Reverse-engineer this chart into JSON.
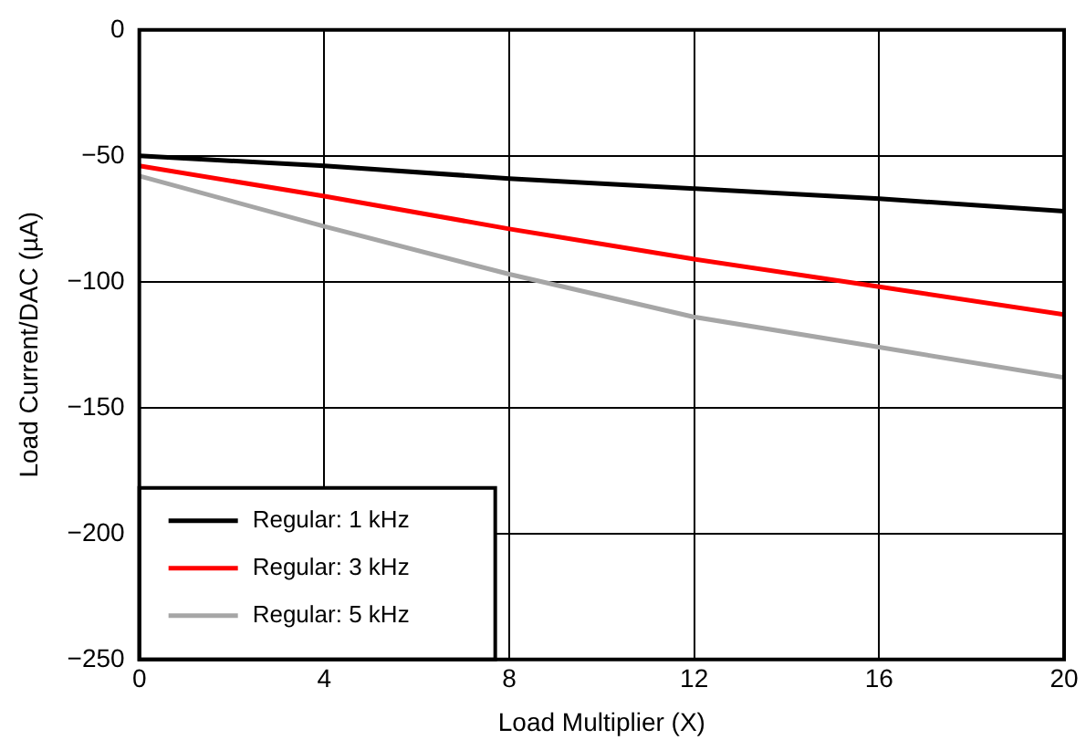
{
  "chart_data": {
    "type": "line",
    "xlabel": "Load Multiplier (X)",
    "ylabel": "Load Current/DAC (µA)",
    "x": [
      0,
      4,
      8,
      12,
      16,
      20
    ],
    "series": [
      {
        "name": "Regular: 1 kHz",
        "color": "#000000",
        "values": [
          -50,
          -54,
          -59,
          -63,
          -67,
          -72
        ]
      },
      {
        "name": "Regular: 3 kHz",
        "color": "#ff0000",
        "values": [
          -54,
          -66,
          -79,
          -91,
          -102,
          -113
        ]
      },
      {
        "name": "Regular: 5 kHz",
        "color": "#a6a6a6",
        "values": [
          -58,
          -78,
          -97,
          -114,
          -126,
          -138
        ]
      }
    ],
    "xlim": [
      0,
      20
    ],
    "xticks": [
      0,
      4,
      8,
      12,
      16,
      20
    ],
    "ylim": [
      -250,
      0
    ],
    "yticks": [
      {
        "value": -250,
        "label": "−250"
      },
      {
        "value": -200,
        "label": "−200"
      },
      {
        "value": -150,
        "label": "−150"
      },
      {
        "value": -100,
        "label": "−100"
      },
      {
        "value": -50,
        "label": "−50"
      },
      0
    ],
    "grid": true,
    "legend": "bottom left",
    "marker": "none",
    "line_style": "solid"
  }
}
